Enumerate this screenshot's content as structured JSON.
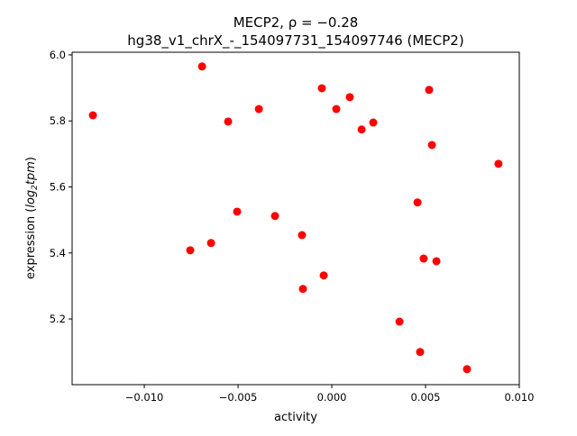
{
  "chart_data": {
    "type": "scatter",
    "title_line1": "MECP2, ρ = −0.28",
    "title_line2": "hg38_v1_chrX_-_154097731_154097746 (MECP2)",
    "xlabel": "activity",
    "ylabel_prefix": "expression (",
    "ylabel_log": "log",
    "ylabel_sub": "2",
    "ylabel_tpm": "tpm",
    "ylabel_suffix": ")",
    "xlim": [
      -0.01385,
      0.01
    ],
    "ylim": [
      5.001,
      6.008
    ],
    "xticks": [
      -0.01,
      -0.005,
      0.0,
      0.005,
      0.01
    ],
    "xtick_labels": [
      "−0.010",
      "−0.005",
      "0.000",
      "0.005",
      "0.010"
    ],
    "yticks": [
      5.2,
      5.4,
      5.6,
      5.8,
      6.0
    ],
    "ytick_labels": [
      "5.2",
      "5.4",
      "5.6",
      "5.8",
      "6.0"
    ],
    "grid": false,
    "marker_color": "#ff0000",
    "points": [
      {
        "x": -0.01274,
        "y": 5.817
      },
      {
        "x": -0.00692,
        "y": 5.965
      },
      {
        "x": -0.00553,
        "y": 5.798
      },
      {
        "x": -0.00389,
        "y": 5.836
      },
      {
        "x": -0.00053,
        "y": 5.899
      },
      {
        "x": 0.00096,
        "y": 5.872
      },
      {
        "x": 0.00024,
        "y": 5.836
      },
      {
        "x": 0.00221,
        "y": 5.795
      },
      {
        "x": 0.00159,
        "y": 5.774
      },
      {
        "x": 0.00519,
        "y": 5.894
      },
      {
        "x": 0.00534,
        "y": 5.727
      },
      {
        "x": 0.00889,
        "y": 5.67
      },
      {
        "x": -0.00505,
        "y": 5.525
      },
      {
        "x": -0.00303,
        "y": 5.512
      },
      {
        "x": -0.00159,
        "y": 5.454
      },
      {
        "x": -0.00755,
        "y": 5.408
      },
      {
        "x": -0.00644,
        "y": 5.43
      },
      {
        "x": -0.00043,
        "y": 5.332
      },
      {
        "x": -0.00154,
        "y": 5.291
      },
      {
        "x": 0.00457,
        "y": 5.553
      },
      {
        "x": 0.0049,
        "y": 5.383
      },
      {
        "x": 0.00558,
        "y": 5.375
      },
      {
        "x": 0.00361,
        "y": 5.192
      },
      {
        "x": 0.00471,
        "y": 5.1
      },
      {
        "x": 0.00721,
        "y": 5.048
      }
    ]
  }
}
